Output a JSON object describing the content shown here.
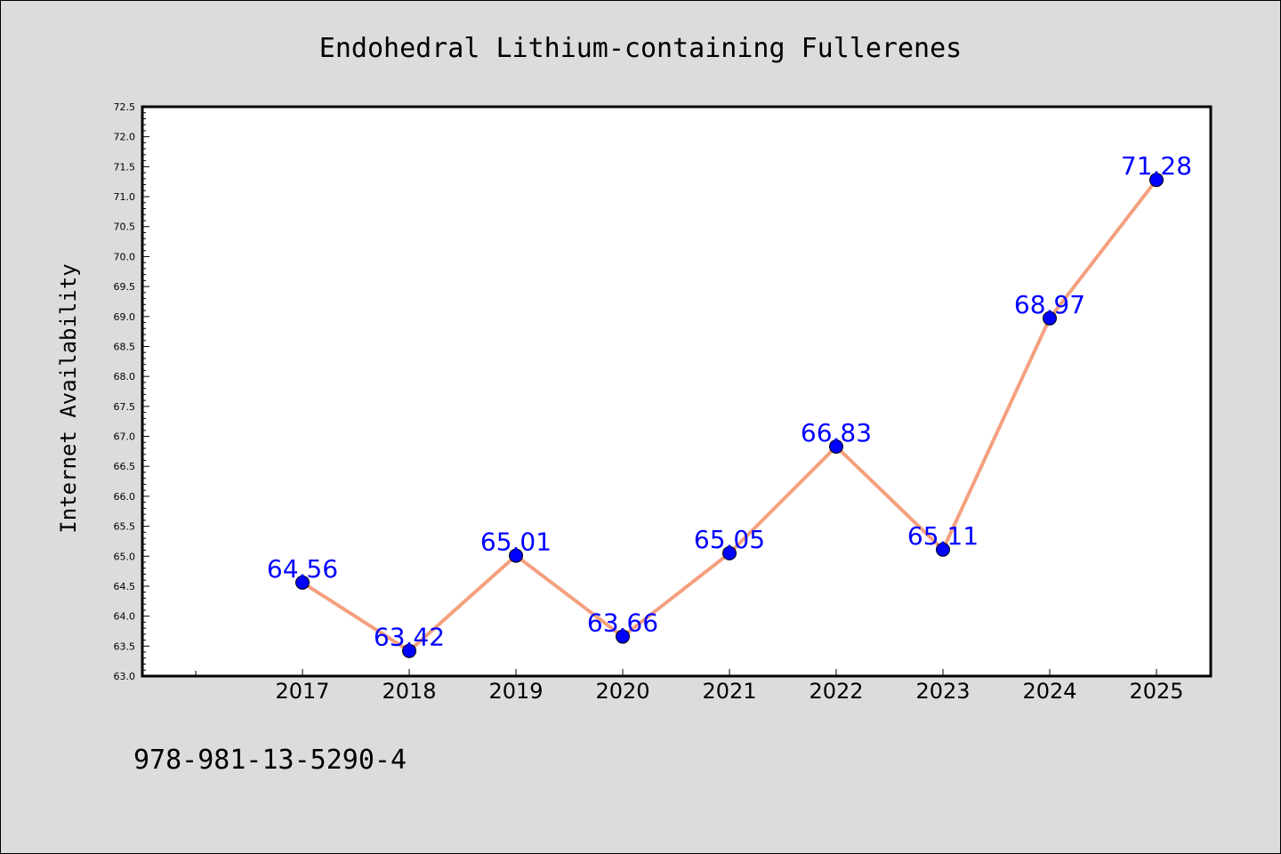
{
  "chart_data": {
    "type": "line",
    "title": "Endohedral Lithium-containing Fullerenes",
    "xlabel": "",
    "ylabel": "Internet Availability",
    "categories": [
      "2017",
      "2018",
      "2019",
      "2020",
      "2021",
      "2022",
      "2023",
      "2024",
      "2025"
    ],
    "series": [
      {
        "values": [
          64.56,
          63.42,
          65.01,
          63.66,
          65.05,
          66.83,
          65.11,
          68.97,
          71.28
        ]
      }
    ],
    "data_labels": [
      "64.56",
      "63.42",
      "65.01",
      "63.66",
      "65.05",
      "66.83",
      "65.11",
      "68.97",
      "71.28"
    ],
    "ylim": [
      63.0,
      72.5
    ],
    "ytick_step": 0.5,
    "yticks": [
      "63.0",
      "63.5",
      "64.0",
      "64.5",
      "65.0",
      "65.5",
      "66.0",
      "66.5",
      "67.0",
      "67.5",
      "68.0",
      "68.5",
      "69.0",
      "69.5",
      "70.0",
      "70.5",
      "71.0",
      "71.5",
      "72.0",
      "72.5"
    ],
    "grid": false,
    "line_color": "#f4a07e",
    "marker_color": "#0000ff",
    "label_color": "#0000ff",
    "background_color": "#dcdcdc",
    "plot_background": "#ffffff"
  },
  "footer": {
    "isbn": "978-981-13-5290-4"
  }
}
